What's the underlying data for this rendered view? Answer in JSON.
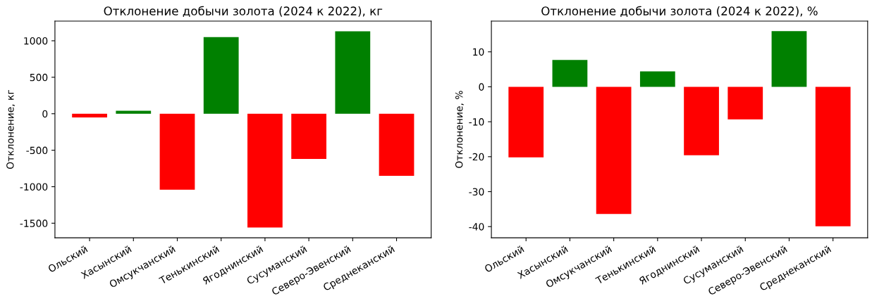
{
  "chart_data": [
    {
      "type": "bar",
      "title": "Отклонение добычи золота (2024 к 2022), кг",
      "ylabel": "Отклонение, кг",
      "categories": [
        "Ольский",
        "Хасынский",
        "Омсукчанский",
        "Тенькинский",
        "Ягоднинский",
        "Сусуманский",
        "Северо-Эвенский",
        "Среднеканский"
      ],
      "values": [
        -50,
        40,
        -1040,
        1050,
        -1560,
        -620,
        1130,
        -850
      ],
      "colors": [
        "#ff0000",
        "#008000",
        "#ff0000",
        "#008000",
        "#ff0000",
        "#ff0000",
        "#008000",
        "#ff0000"
      ],
      "ylim": [
        -1700,
        1270
      ],
      "yticks": [
        -1500,
        -1000,
        -500,
        0,
        500,
        1000
      ],
      "grid": false,
      "legend": false
    },
    {
      "type": "bar",
      "title": "Отклонение добычи золота (2024 к 2022), %",
      "ylabel": "Отклонение, %",
      "categories": [
        "Ольский",
        "Хасынский",
        "Омсукчанский",
        "Тенькинский",
        "Ягоднинский",
        "Сусуманский",
        "Северо-Эвенский",
        "Среднеканский"
      ],
      "values": [
        -20.2,
        7.7,
        -36.4,
        4.4,
        -19.6,
        -9.3,
        15.9,
        -39.9
      ],
      "colors": [
        "#ff0000",
        "#008000",
        "#ff0000",
        "#008000",
        "#ff0000",
        "#ff0000",
        "#008000",
        "#ff0000"
      ],
      "ylim": [
        -43.2,
        18.8
      ],
      "yticks": [
        -40,
        -30,
        -20,
        -10,
        0,
        10
      ],
      "grid": false,
      "legend": false
    }
  ]
}
